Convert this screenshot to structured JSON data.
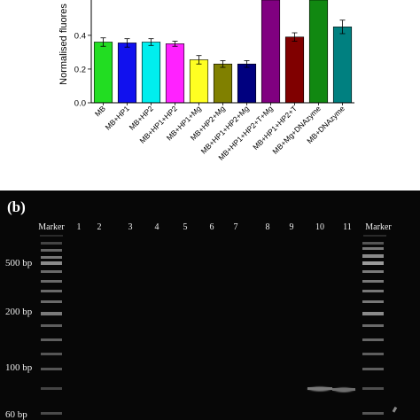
{
  "chart_data": [
    {
      "type": "bar",
      "ylabel": "Normalised fluores",
      "ylim": [
        0.0,
        0.62
      ],
      "yticks": [
        "0.0",
        "0.2",
        "0.4"
      ],
      "categories": [
        "MB",
        "MB+HP1",
        "MB+HP2",
        "MB+HP1+HP2",
        "MB+HP1+Mg",
        "MB+HP2+Mg",
        "MB+HP1+HP2+Mg",
        "MB+HP1+HP2+T+Mg",
        "MB+HP1+HP2+T",
        "MB+Mg+DNAzyme",
        "MB+DNAzyme"
      ],
      "values": [
        0.36,
        0.355,
        0.36,
        0.35,
        0.255,
        0.23,
        0.23,
        0.62,
        0.39,
        0.62,
        0.45
      ],
      "errors": [
        0.025,
        0.025,
        0.02,
        0.015,
        0.025,
        0.02,
        0.02,
        0,
        0.025,
        0,
        0.04
      ],
      "colors": [
        "#22dd22",
        "#1111ee",
        "#00eeee",
        "#ff22ff",
        "#ffff22",
        "#808000",
        "#00007f",
        "#800080",
        "#800000",
        "#118811",
        "#008080"
      ]
    }
  ],
  "gel": {
    "panel_label": "(b)",
    "lane_labels": [
      "Marker",
      "1",
      "2",
      "3",
      "4",
      "5",
      "6",
      "7",
      "8",
      "9",
      "10",
      "11",
      "Marker"
    ],
    "size_labels": [
      "500 bp",
      "200 bp",
      "100 bp",
      "60 bp"
    ]
  }
}
